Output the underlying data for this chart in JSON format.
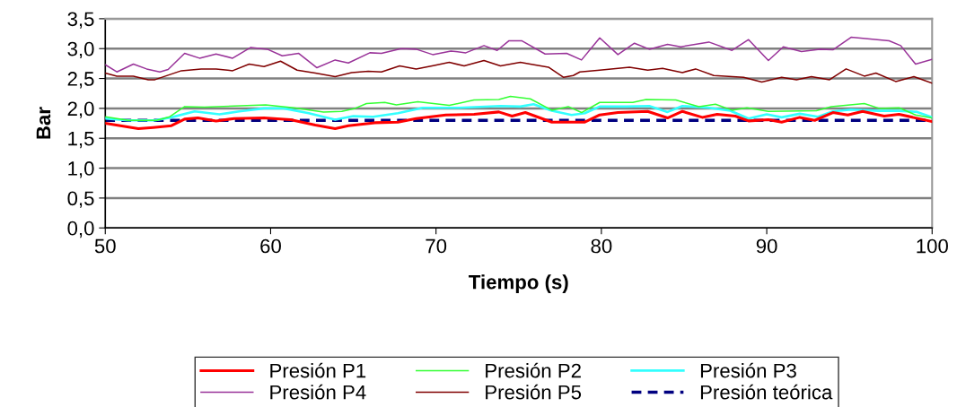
{
  "chart_data": {
    "type": "line",
    "xlabel": "Tiempo (s)",
    "ylabel": "Bar",
    "xlim": [
      50,
      100
    ],
    "xticks": [
      50,
      60,
      70,
      80,
      90,
      100
    ],
    "ylim": [
      0,
      3.5
    ],
    "yticks": [
      {
        "value": 0,
        "label": "0,0"
      },
      {
        "value": 0.5,
        "label": "0,5"
      },
      {
        "value": 1,
        "label": "1,0"
      },
      {
        "value": 1.5,
        "label": "1,5"
      },
      {
        "value": 2,
        "label": "2,0"
      },
      {
        "value": 2.5,
        "label": "2,5"
      },
      {
        "value": 3,
        "label": "3,0"
      },
      {
        "value": 3.5,
        "label": "3,5"
      }
    ],
    "grid": "y",
    "legend": "bottom",
    "marker": "none",
    "series": [
      {
        "name": "Presión P1",
        "color": "#ff0000",
        "x": [
          50,
          52,
          52.9,
          54,
          54.8,
          55.6,
          56.7,
          57.8,
          59.6,
          61.2,
          62.7,
          63.9,
          64.7,
          66.3,
          67.7,
          68.8,
          70.6,
          72.3,
          73.8,
          74.6,
          75.4,
          77,
          79,
          79.9,
          81,
          82.8,
          84,
          84.9,
          86.1,
          87,
          88.1,
          88.9,
          90.1,
          90.9,
          92,
          92.9,
          94,
          94.9,
          95.8,
          97.1,
          98,
          100
        ],
        "values": [
          1.75,
          1.66,
          1.68,
          1.71,
          1.82,
          1.84,
          1.79,
          1.83,
          1.84,
          1.81,
          1.72,
          1.66,
          1.71,
          1.76,
          1.77,
          1.83,
          1.89,
          1.9,
          1.94,
          1.87,
          1.93,
          1.77,
          1.77,
          1.89,
          1.93,
          1.95,
          1.84,
          1.95,
          1.85,
          1.9,
          1.87,
          1.79,
          1.81,
          1.77,
          1.85,
          1.8,
          1.93,
          1.89,
          1.95,
          1.87,
          1.9,
          1.78
        ]
      },
      {
        "name": "Presión P2",
        "color": "#33ff33",
        "x": [
          50,
          51.4,
          53.1,
          53.9,
          54.8,
          56,
          57.8,
          59.7,
          61.4,
          63.2,
          64.3,
          65.1,
          65.8,
          66.9,
          67.6,
          68.9,
          70.8,
          72.3,
          73.8,
          74.5,
          75.7,
          77,
          78,
          78.8,
          79.9,
          81.9,
          82.7,
          84.5,
          85.9,
          86.9,
          87.9,
          88.8,
          90.1,
          93,
          93.9,
          95.9,
          96.8,
          98,
          99,
          100
        ],
        "values": [
          1.86,
          1.8,
          1.8,
          1.86,
          2.03,
          2.02,
          2.04,
          2.06,
          2.01,
          1.94,
          1.95,
          2.0,
          2.08,
          2.1,
          2.06,
          2.11,
          2.05,
          2.14,
          2.15,
          2.2,
          2.16,
          1.97,
          2.03,
          1.93,
          2.1,
          2.1,
          2.15,
          2.14,
          2.03,
          2.07,
          1.97,
          2.01,
          1.95,
          1.96,
          2.03,
          2.08,
          2.0,
          2.01,
          1.89,
          1.84
        ]
      },
      {
        "name": "Presión P3",
        "color": "#33ffff",
        "x": [
          50,
          51.4,
          53,
          54,
          55.4,
          56.9,
          58.1,
          59.6,
          60.8,
          62.3,
          63.9,
          65,
          66.2,
          67.7,
          69.2,
          71.4,
          73.9,
          75.1,
          75.9,
          77,
          78.2,
          79,
          79.9,
          81.5,
          82.9,
          84,
          84.9,
          86.5,
          87.8,
          88.9,
          90,
          90.9,
          92,
          93.1,
          94,
          95.1,
          96.8,
          98,
          99.1,
          100
        ],
        "values": [
          1.83,
          1.8,
          1.8,
          1.85,
          1.95,
          1.9,
          1.95,
          2.0,
          2.0,
          1.92,
          1.81,
          1.87,
          1.86,
          1.92,
          2.01,
          2.01,
          2.04,
          2.03,
          2.07,
          1.96,
          1.89,
          1.92,
          2.03,
          2.03,
          2.04,
          1.94,
          2.04,
          2.01,
          1.96,
          1.83,
          1.9,
          1.85,
          1.91,
          1.86,
          1.95,
          1.98,
          1.96,
          1.96,
          1.94,
          1.85
        ]
      },
      {
        "name": "Presión P4",
        "color": "#993399",
        "x": [
          50,
          50.7,
          51.7,
          52.5,
          53.3,
          53.8,
          54.8,
          55.7,
          56.7,
          57.7,
          58.8,
          59.8,
          60.7,
          61.7,
          62.8,
          63.9,
          64.7,
          66,
          66.7,
          67.9,
          68.8,
          69.8,
          70.9,
          71.8,
          72.9,
          73.7,
          74.4,
          75.2,
          76.6,
          77.9,
          78.8,
          79.9,
          81,
          82,
          82.9,
          84,
          84.8,
          86.5,
          87.9,
          88.9,
          90.1,
          91,
          92.1,
          93.2,
          94,
          95.1,
          97.4,
          98.1,
          99,
          100
        ],
        "values": [
          2.73,
          2.61,
          2.74,
          2.66,
          2.61,
          2.65,
          2.92,
          2.84,
          2.91,
          2.84,
          3.02,
          2.99,
          2.88,
          2.92,
          2.68,
          2.81,
          2.76,
          2.93,
          2.92,
          3.0,
          2.99,
          2.9,
          2.96,
          2.93,
          3.05,
          2.97,
          3.13,
          3.13,
          2.91,
          2.92,
          2.81,
          3.18,
          2.9,
          3.09,
          2.99,
          3.07,
          3.03,
          3.11,
          2.97,
          3.15,
          2.8,
          3.03,
          2.95,
          2.99,
          2.98,
          3.19,
          3.13,
          3.05,
          2.74,
          2.82
        ]
      },
      {
        "name": "Presión P5",
        "color": "#800000",
        "x": [
          50,
          50.7,
          51.7,
          52.6,
          53,
          54.6,
          55.8,
          56.7,
          57.7,
          58.7,
          59.6,
          60.6,
          61.6,
          62.7,
          63.9,
          64.9,
          65.9,
          66.7,
          67.8,
          68.8,
          69.9,
          70.8,
          71.7,
          72.9,
          73.9,
          75.1,
          75.7,
          76.8,
          77.7,
          78.3,
          78.7,
          79.9,
          81.7,
          82.8,
          83.7,
          84.9,
          85.7,
          86.8,
          88.6,
          89.7,
          90.9,
          91.8,
          92.7,
          93.8,
          94.8,
          95.9,
          96.6,
          97.8,
          98.9,
          100
        ],
        "values": [
          2.59,
          2.54,
          2.54,
          2.48,
          2.48,
          2.63,
          2.66,
          2.66,
          2.63,
          2.74,
          2.7,
          2.79,
          2.64,
          2.59,
          2.53,
          2.6,
          2.62,
          2.61,
          2.71,
          2.66,
          2.72,
          2.77,
          2.71,
          2.8,
          2.71,
          2.77,
          2.74,
          2.69,
          2.52,
          2.55,
          2.61,
          2.64,
          2.69,
          2.64,
          2.67,
          2.6,
          2.66,
          2.55,
          2.52,
          2.44,
          2.52,
          2.48,
          2.53,
          2.48,
          2.66,
          2.54,
          2.59,
          2.45,
          2.53,
          2.42
        ]
      },
      {
        "name": "Presión teórica",
        "color": "#000080",
        "line_style": "dashed",
        "x": [
          50,
          100
        ],
        "values": [
          1.8,
          1.8
        ]
      }
    ]
  }
}
